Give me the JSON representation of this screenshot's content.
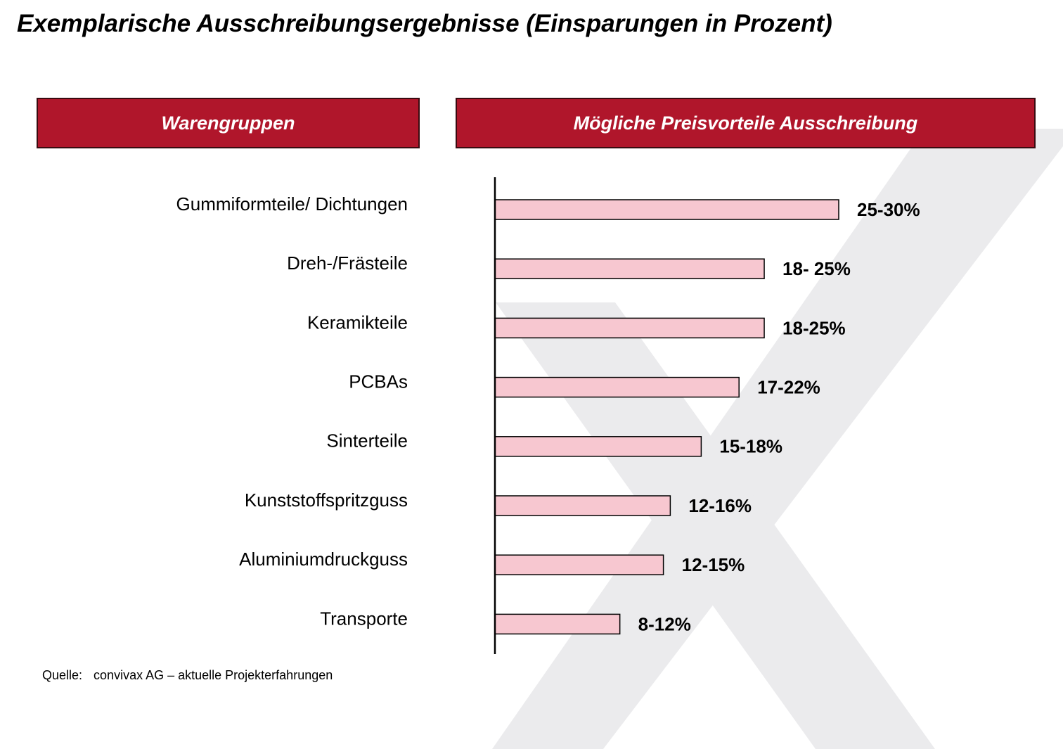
{
  "title": "Exemplarische Ausschreibungsergebnisse (Einsparungen in Prozent)",
  "headers": {
    "left": "Warengruppen",
    "right": "Mögliche Preisvorteile Ausschreibung"
  },
  "source": {
    "label": "Quelle:",
    "text": "convivax AG – aktuelle Projekterfahrungen"
  },
  "colors": {
    "header_fill": "#b0162b",
    "bar_fill": "#f7c7d0",
    "watermark": "#ebebed"
  },
  "chart_data": {
    "type": "bar",
    "orientation": "horizontal",
    "title": "",
    "xlabel": "",
    "ylabel": "",
    "xlim": [
      0,
      35
    ],
    "grid": false,
    "categories": [
      "Gummiformteile/ Dichtungen",
      "Dreh-/Frästeile",
      "Keramikteile",
      "PCBAs",
      "Sinterteile",
      "Kunststoffspritzguss",
      "Aluminiumdruckguss",
      "Transporte"
    ],
    "values": [
      30,
      23.5,
      23.5,
      21.3,
      18,
      15.3,
      14.7,
      10.9
    ],
    "data_labels": [
      "25-30%",
      "18- 25%",
      "18-25%",
      "17-22%",
      "15-18%",
      "12-16%",
      "12-15%",
      "8-12%"
    ]
  }
}
